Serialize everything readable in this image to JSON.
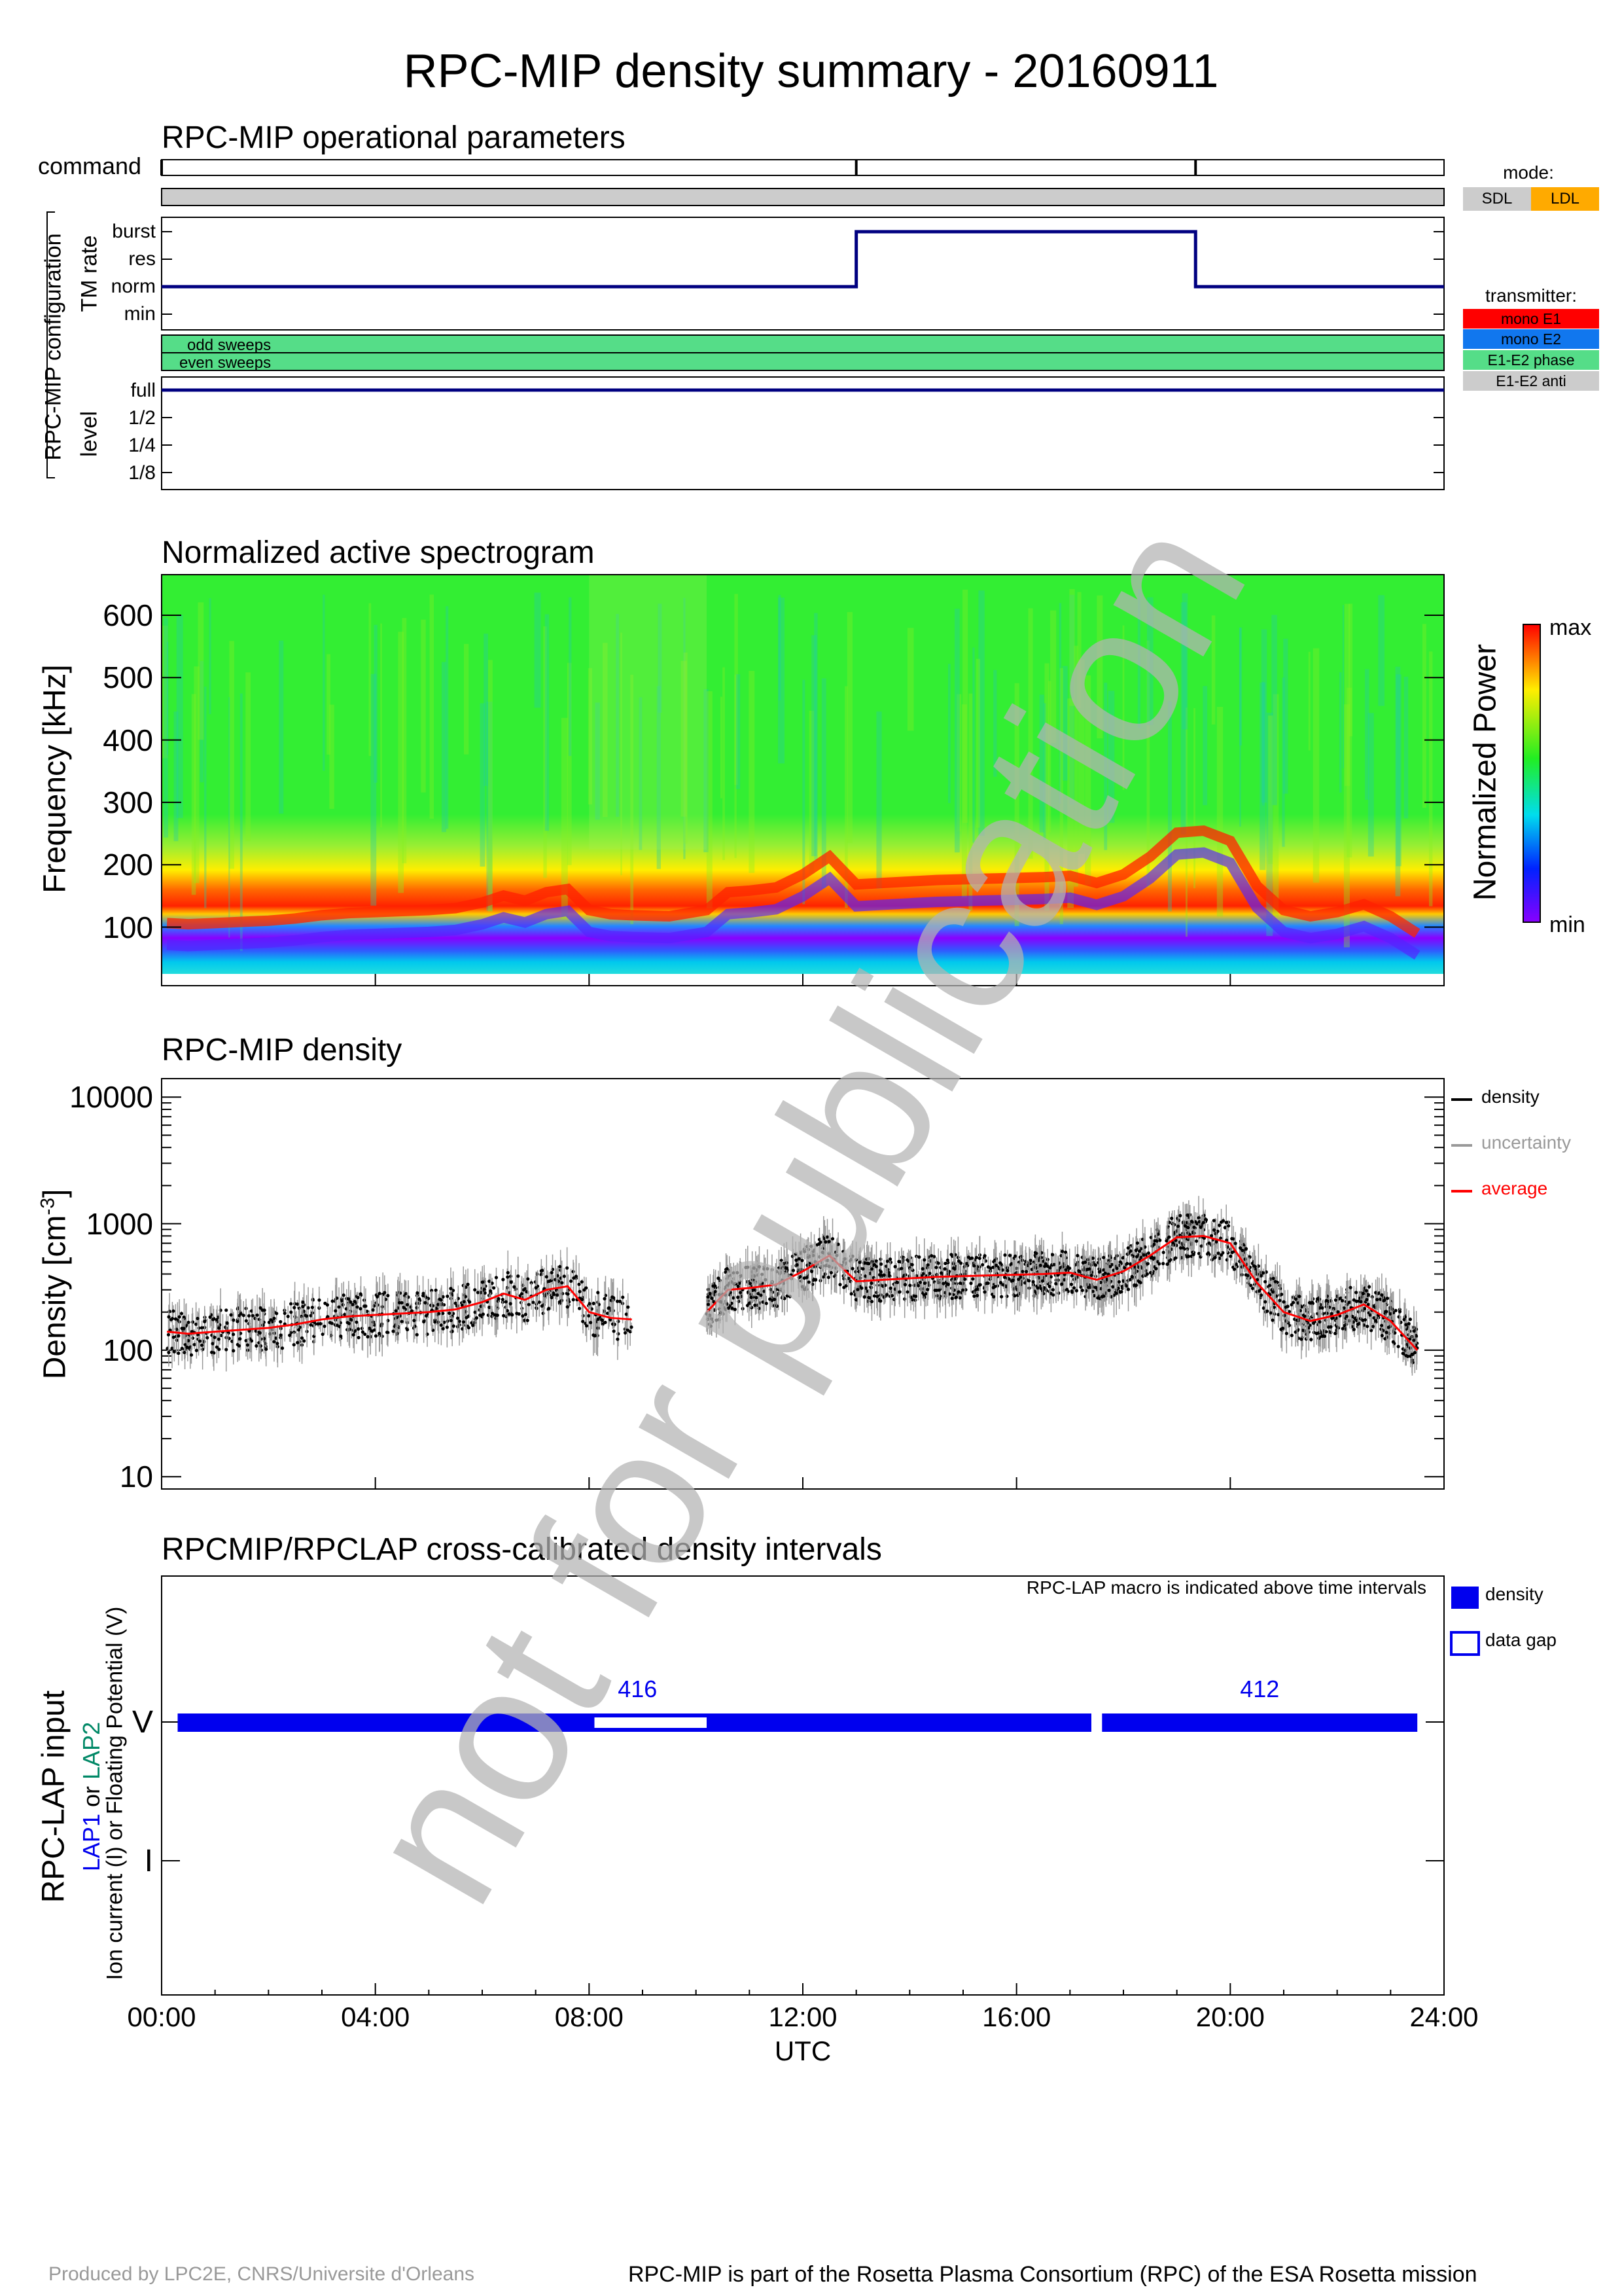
{
  "title": "RPC-MIP density summary - 20160911",
  "watermark": "not for publication",
  "footer": {
    "left": "Produced by LPC2E, CNRS/Universite d'Orleans",
    "right": "RPC-MIP is part of the Rosetta Plasma Consortium (RPC) of the ESA Rosetta mission"
  },
  "colors": {
    "spectro_green": "#33ee33",
    "band_red": "#ff2200",
    "lap_blue": "#0000ee",
    "sweep_green": "#55dd88",
    "trace_navy": "#000080",
    "mode_sdl": "#cccccc",
    "mode_ldl": "#ffaa00"
  },
  "time_axis": {
    "ticks": [
      "00:00",
      "04:00",
      "08:00",
      "12:00",
      "16:00",
      "20:00",
      "24:00"
    ],
    "label": "UTC",
    "range_hours": [
      0,
      24
    ]
  },
  "ops": {
    "title": "RPC-MIP operational parameters",
    "command_label": "command",
    "command_times_hours": [
      0,
      13.0,
      19.35
    ],
    "config_label": "RPC-MIP configuration",
    "tm_label": "TM rate",
    "tm_levels": [
      "burst",
      "res",
      "norm",
      "min"
    ],
    "tm_trace": [
      {
        "h": 0,
        "level": "norm"
      },
      {
        "h": 13.0,
        "level": "burst"
      },
      {
        "h": 19.35,
        "level": "norm"
      },
      {
        "h": 24,
        "level": "norm"
      }
    ],
    "sweeps": {
      "odd": "odd sweeps",
      "even": "even sweeps"
    },
    "level_label": "level",
    "level_ticks": [
      "full",
      "1/2",
      "1/4",
      "1/8"
    ],
    "level_value": "full",
    "mode_legend": {
      "title": "mode:",
      "items": [
        {
          "label": "SDL",
          "color": "#cccccc"
        },
        {
          "label": "LDL",
          "color": "#ffaa00"
        }
      ]
    },
    "transmitter_legend": {
      "title": "transmitter:",
      "items": [
        {
          "label": "mono E1",
          "color": "#ff0000"
        },
        {
          "label": "mono E2",
          "color": "#1177ee"
        },
        {
          "label": "E1-E2 phase",
          "color": "#55dd88"
        },
        {
          "label": "E1-E2 anti",
          "color": "#cccccc"
        }
      ]
    }
  },
  "spectrogram": {
    "title": "Normalized active spectrogram",
    "ylabel": "Frequency [kHz]",
    "yticks": [
      100,
      200,
      300,
      400,
      500,
      600
    ],
    "ylim": [
      25,
      665
    ],
    "colorbar_label": "Normalized Power",
    "colorbar_max": "max",
    "colorbar_min": "min"
  },
  "chart_data": {
    "type": "scatter",
    "title": "RPC-MIP density",
    "ylabel": "Density [cm",
    "ylabel_sup": "-3",
    "ylabel_end": "]",
    "yscale": "log",
    "ylim": [
      8,
      14000
    ],
    "yticks": [
      "10",
      "100",
      "1000",
      "10000"
    ],
    "legend": [
      {
        "label": "density",
        "color": "#000000"
      },
      {
        "label": "uncertainty",
        "color": "#999999"
      },
      {
        "label": "average",
        "color": "#ff0000"
      }
    ],
    "average": {
      "x_hours": [
        0.1,
        0.5,
        1,
        1.5,
        2,
        2.5,
        3,
        3.5,
        4,
        4.5,
        5,
        5.5,
        6,
        6.4,
        6.8,
        7.2,
        7.6,
        8.0,
        8.4,
        8.8
      ],
      "density": [
        140,
        135,
        140,
        145,
        150,
        160,
        175,
        185,
        190,
        195,
        200,
        210,
        240,
        280,
        250,
        300,
        320,
        200,
        180,
        175
      ]
    },
    "average2": {
      "x_hours": [
        10.2,
        10.6,
        11.0,
        11.5,
        12.0,
        12.5,
        13.0,
        13.5,
        14.0,
        14.5,
        15.0,
        15.5,
        16.0,
        16.5,
        17.0,
        17.5,
        18.0,
        18.5,
        19.0,
        19.5,
        20.0,
        20.5,
        21.0,
        21.5,
        22.0,
        22.5,
        23.0,
        23.5
      ],
      "density": [
        200,
        300,
        310,
        330,
        420,
        560,
        350,
        360,
        370,
        380,
        385,
        390,
        395,
        400,
        410,
        360,
        420,
        560,
        780,
        800,
        700,
        340,
        200,
        170,
        190,
        230,
        170,
        100
      ]
    }
  },
  "lap": {
    "title": "RPCMIP/RPCLAP cross-calibrated density intervals",
    "ylabel_main": "RPC-LAP input",
    "ylabel_lap1": "LAP1",
    "ylabel_or": "or",
    "ylabel_lap2": "LAP2",
    "ylabel_sub": "Ion current (I) or Floating Potential (V)",
    "ylevels": [
      "V",
      "I"
    ],
    "note": "RPC-LAP macro is indicated above time intervals",
    "legend": [
      {
        "label": "density"
      },
      {
        "label": "data gap"
      }
    ],
    "intervals": [
      {
        "start_h": 0.3,
        "end_h": 17.4,
        "macro": "416",
        "gaps": [
          {
            "start_h": 8.1,
            "end_h": 10.2
          }
        ]
      },
      {
        "start_h": 17.6,
        "end_h": 23.5,
        "macro": "412",
        "gaps": []
      }
    ]
  }
}
